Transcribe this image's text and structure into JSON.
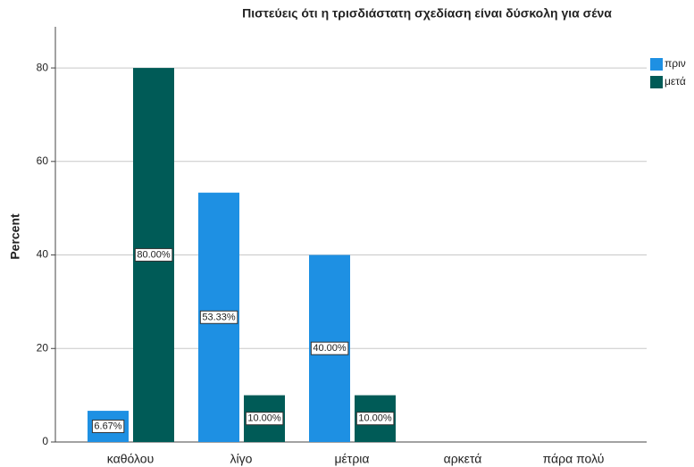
{
  "chart_data": {
    "type": "bar",
    "title": "Πιστεύεις ότι η τρισδιάστατη σχεδίαση είναι δύσκολη για σένα",
    "y_label": "Percent",
    "categories": [
      "καθόλου",
      "λίγο",
      "μέτρια",
      "αρκετά",
      "πάρα πολύ"
    ],
    "series": [
      {
        "name": "πριν",
        "color": "#1e90e3",
        "values": [
          6.67,
          53.33,
          40,
          null,
          null
        ],
        "value_labels": [
          "6.67%",
          "53.33%",
          "40.00%",
          null,
          null
        ]
      },
      {
        "name": "μετά",
        "color": "#005b57",
        "values": [
          80,
          10,
          10,
          null,
          null
        ],
        "value_labels": [
          "80.00%",
          "10.00%",
          "10.00%",
          null,
          null
        ]
      }
    ],
    "ylim": [
      0,
      88.8
    ],
    "yticks": [
      0,
      20,
      40,
      60,
      80
    ],
    "grid": true,
    "legend": "top-right"
  }
}
